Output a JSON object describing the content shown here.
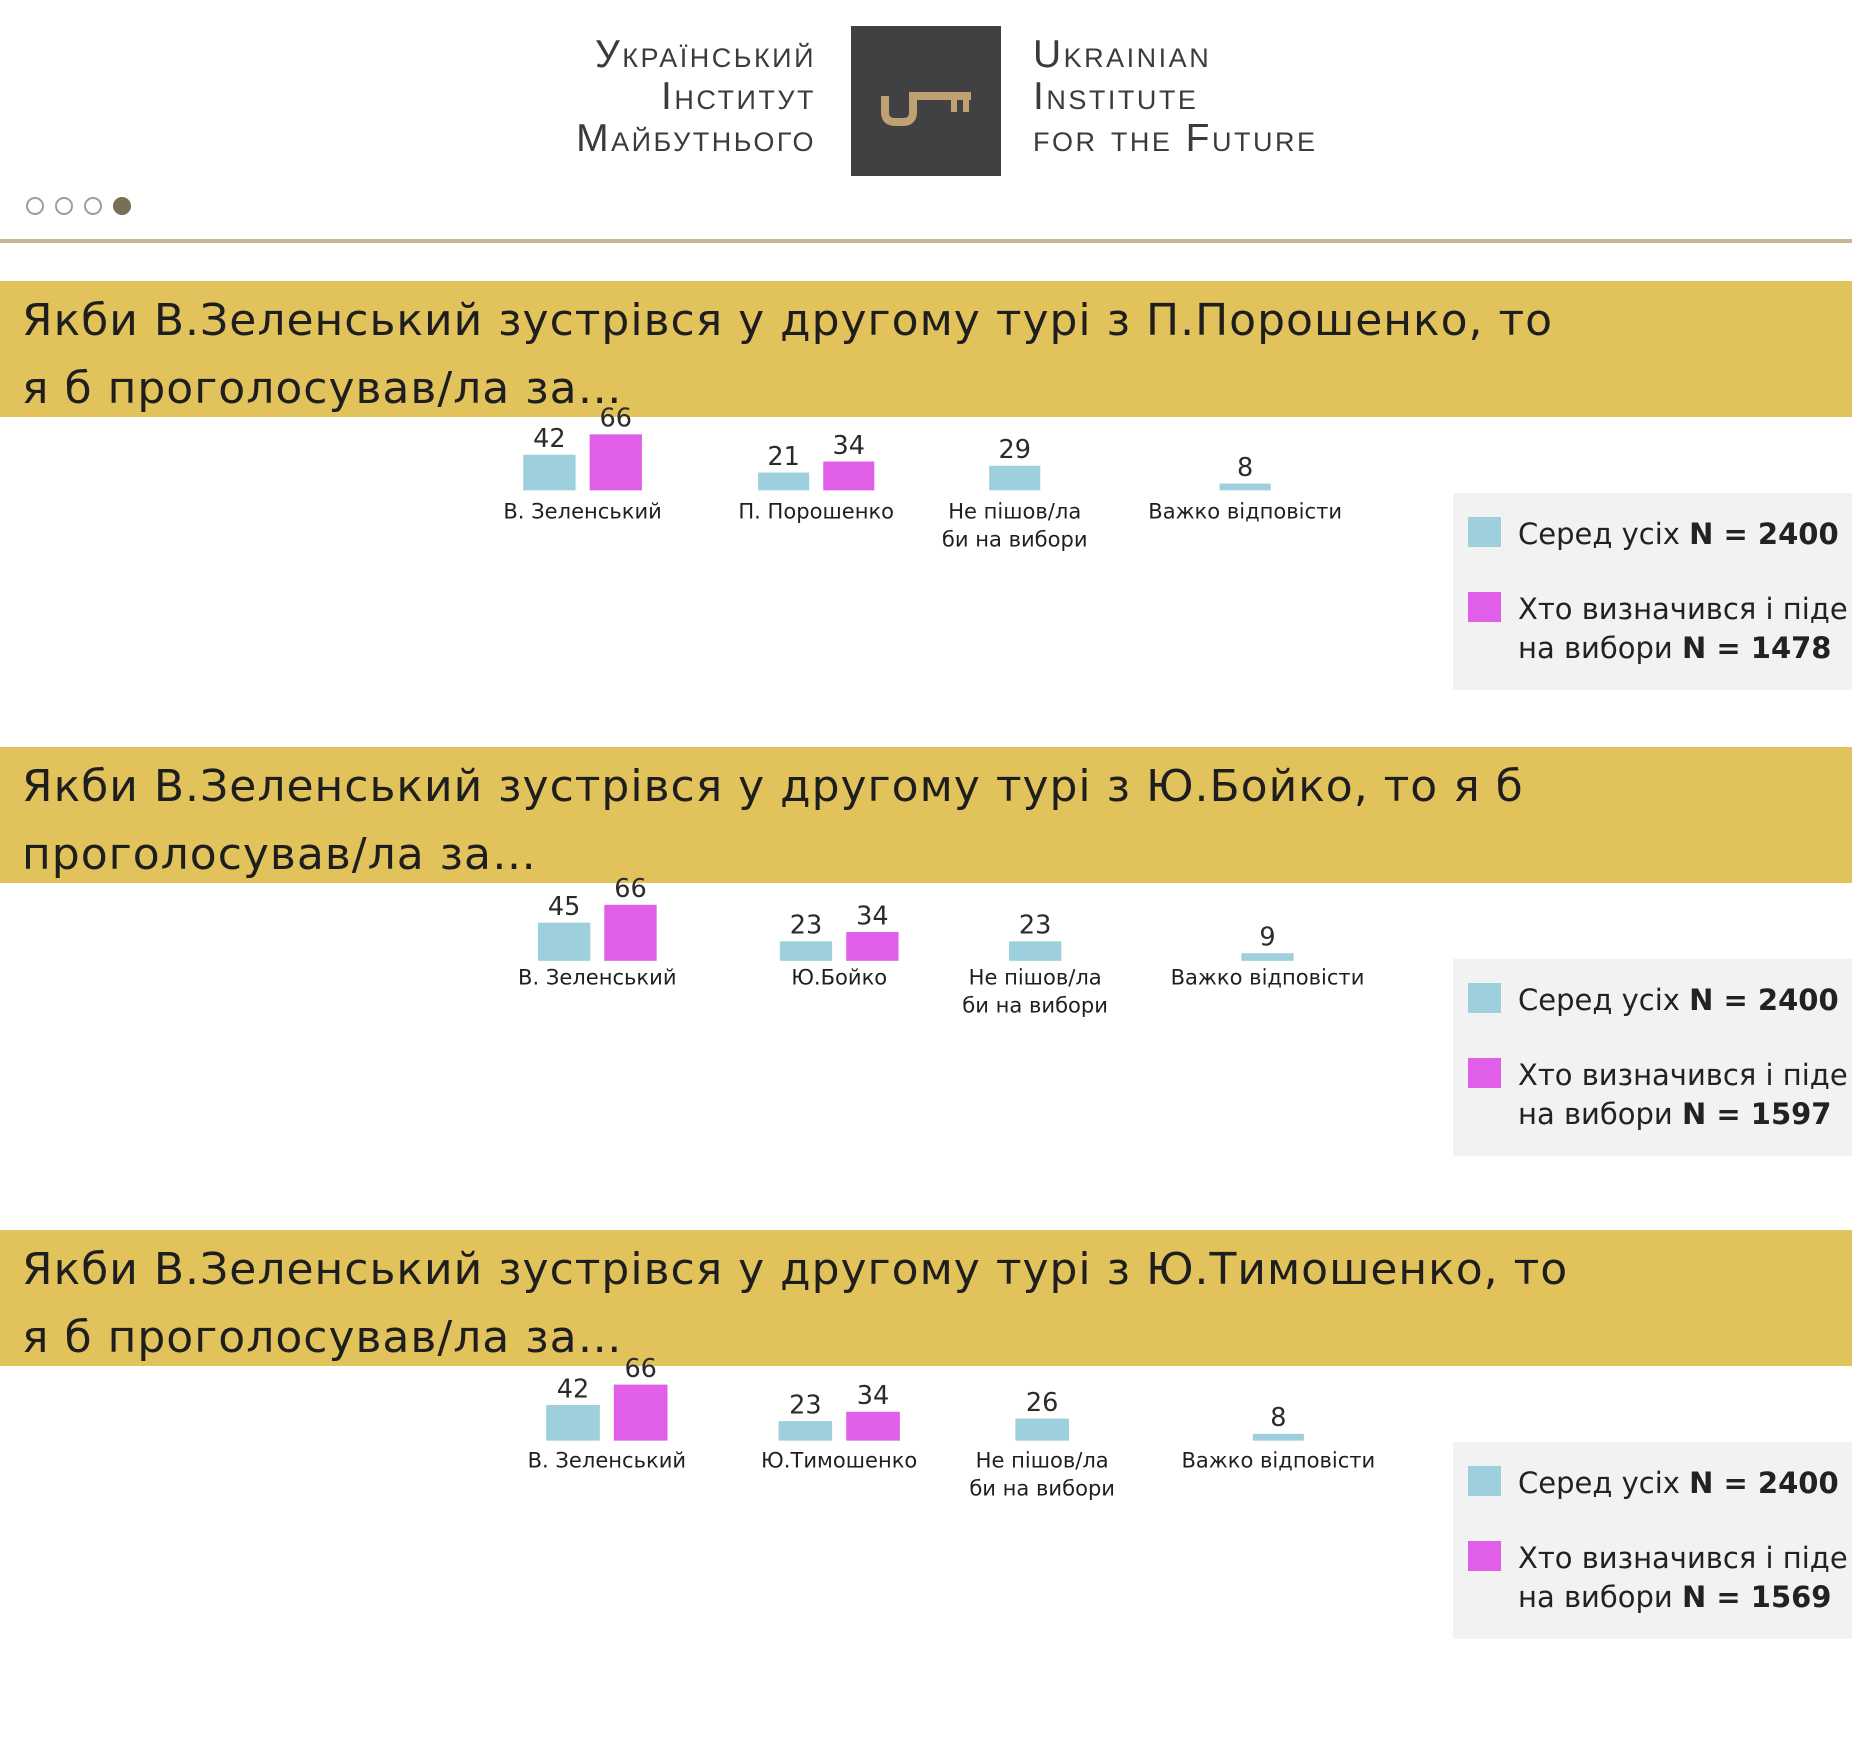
{
  "header": {
    "logo_uk_lines": [
      "Український",
      "Інститут",
      "Майбутнього"
    ],
    "logo_en_lines": [
      "Ukrainian",
      "Institute",
      "for the Future"
    ],
    "logo_mark": "key-icon",
    "pager_dots": 4,
    "pager_active": 4
  },
  "colors": {
    "all": "#9ecfdc",
    "decided": "#e15fe8",
    "banner": "#e2c25b",
    "brand_box": "#414042",
    "brand_gold": "#bfa174"
  },
  "legend": {
    "all_label": "Серед усіх",
    "decided_label_line1": "Хто визначився і піде",
    "decided_label_line2": "на вибори",
    "n_prefix": "N = "
  },
  "chart_data": [
    {
      "type": "bar",
      "title_lines": [
        "Якби В.Зеленський зустрівся у другому турі з П.Порошенко, то",
        "я б проголосував/ла за…"
      ],
      "categories": [
        [
          "В. Зеленський"
        ],
        [
          "П. Порошенко"
        ],
        [
          "Не пішов/ла",
          "би на вибори"
        ],
        [
          "Важко відповісти"
        ]
      ],
      "series": [
        {
          "key": "all",
          "values": [
            42,
            21,
            29,
            8
          ],
          "n": "2400"
        },
        {
          "key": "decided",
          "values": [
            66,
            34,
            null,
            null
          ],
          "n": "1478"
        }
      ]
    },
    {
      "type": "bar",
      "title_lines": [
        "Якби В.Зеленський зустрівся у другому турі з Ю.Бойко, то я б",
        "проголосував/ла за…"
      ],
      "categories": [
        [
          "В. Зеленський"
        ],
        [
          "Ю.Бойко"
        ],
        [
          "Не пішов/ла",
          "би на вибори"
        ],
        [
          "Важко відповісти"
        ]
      ],
      "series": [
        {
          "key": "all",
          "values": [
            45,
            23,
            23,
            9
          ],
          "n": "2400"
        },
        {
          "key": "decided",
          "values": [
            66,
            34,
            null,
            null
          ],
          "n": "1597"
        }
      ]
    },
    {
      "type": "bar",
      "title_lines": [
        "Якби В.Зеленський зустрівся у другому турі з Ю.Тимошенко, то",
        "я б проголосував/ла за…"
      ],
      "categories": [
        [
          "В. Зеленський"
        ],
        [
          "Ю.Тимошенко"
        ],
        [
          "Не пішов/ла",
          "би на вибори"
        ],
        [
          "Важко відповісти"
        ]
      ],
      "series": [
        {
          "key": "all",
          "values": [
            42,
            23,
            26,
            8
          ],
          "n": "2400"
        },
        {
          "key": "decided",
          "values": [
            66,
            34,
            null,
            null
          ],
          "n": "1569"
        }
      ]
    }
  ]
}
